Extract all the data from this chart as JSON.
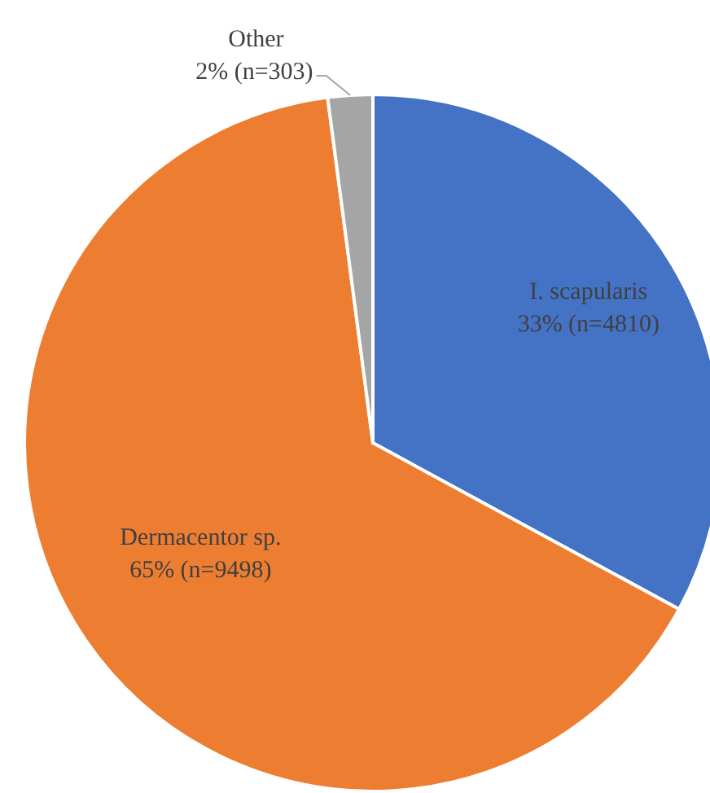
{
  "chart_data": {
    "type": "pie",
    "categories": [
      "I. scapularis",
      "Dermacentor sp.",
      "Other"
    ],
    "values": [
      4810,
      9498,
      303
    ],
    "value_labels": [
      "33% (n=4810)",
      "65% (n=9498)",
      "2% (n=303)"
    ],
    "colors": [
      "#4472c4",
      "#ed7d31",
      "#a5a5a5"
    ]
  }
}
